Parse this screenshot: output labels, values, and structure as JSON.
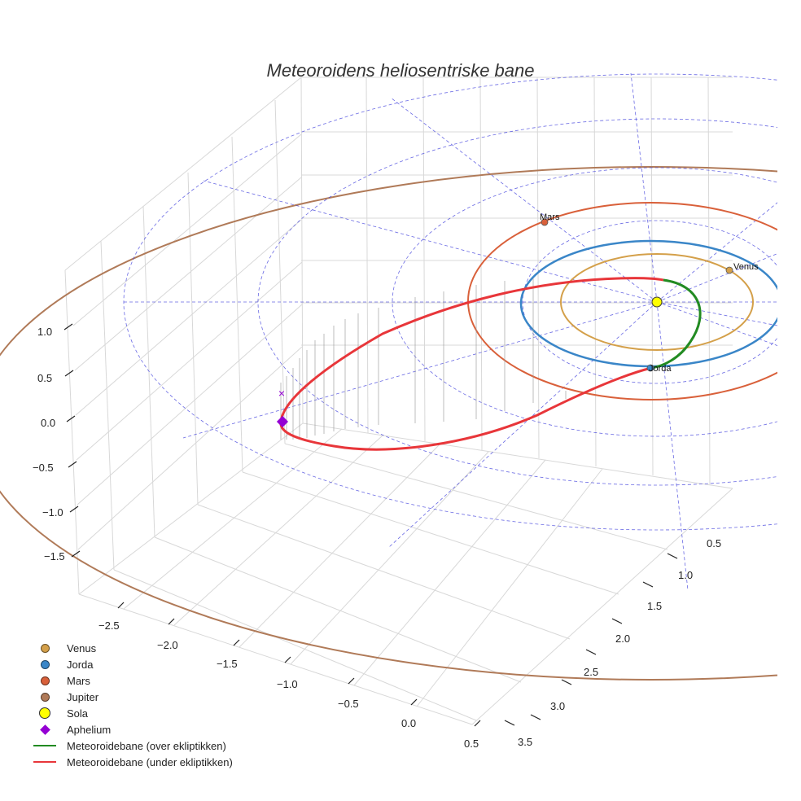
{
  "title": "Meteoroidens heliosentriske bane",
  "chart_data": {
    "type": "line",
    "projection": "3d",
    "title": "Meteoroidens heliosentriske bane",
    "xlabel": "",
    "ylabel": "",
    "zlabel": "",
    "x_ticks": [
      "−2.5",
      "−2.0",
      "−1.5",
      "−1.0",
      "−0.5",
      "0.0",
      "0.5"
    ],
    "y_ticks": [
      "0.5",
      "1.0",
      "1.5",
      "2.0",
      "2.5",
      "3.0",
      "3.5"
    ],
    "z_ticks": [
      "1.0",
      "0.5",
      "0.0",
      "−0.5",
      "−1.0",
      "−1.5"
    ],
    "xlim": [
      -2.8,
      0.6
    ],
    "ylim": [
      0.2,
      3.6
    ],
    "zlim": [
      -1.8,
      1.3
    ],
    "planets": [
      {
        "name": "Venus",
        "orbit_radius_au": 0.72,
        "color": "#d4a04a"
      },
      {
        "name": "Jorda",
        "orbit_radius_au": 1.0,
        "color": "#3a86c8"
      },
      {
        "name": "Mars",
        "orbit_radius_au": 1.52,
        "color": "#d9603a"
      },
      {
        "name": "Jupiter",
        "orbit_radius_au": 5.2,
        "color": "#b07a58"
      }
    ],
    "sun": {
      "name": "Sola",
      "color": "#ffff00"
    },
    "aphelion": {
      "name": "Aphelium",
      "color": "#9400d3"
    },
    "series": [
      {
        "name": "Meteoroidebane (over ekliptikken)",
        "color": "#228b22"
      },
      {
        "name": "Meteoroidebane (under ekliptikken)",
        "color": "#e8363a"
      }
    ],
    "annotations": [
      "Mars",
      "Venus",
      "Jorda"
    ],
    "grid": true,
    "legend_position": "bottom-left"
  },
  "legend": {
    "venus": "Venus",
    "jorda": "Jorda",
    "mars": "Mars",
    "jupiter": "Jupiter",
    "sola": "Sola",
    "aphelium": "Aphelium",
    "over": "Meteoroidebane (over ekliptikken)",
    "under": "Meteoroidebane (under ekliptikken)"
  }
}
